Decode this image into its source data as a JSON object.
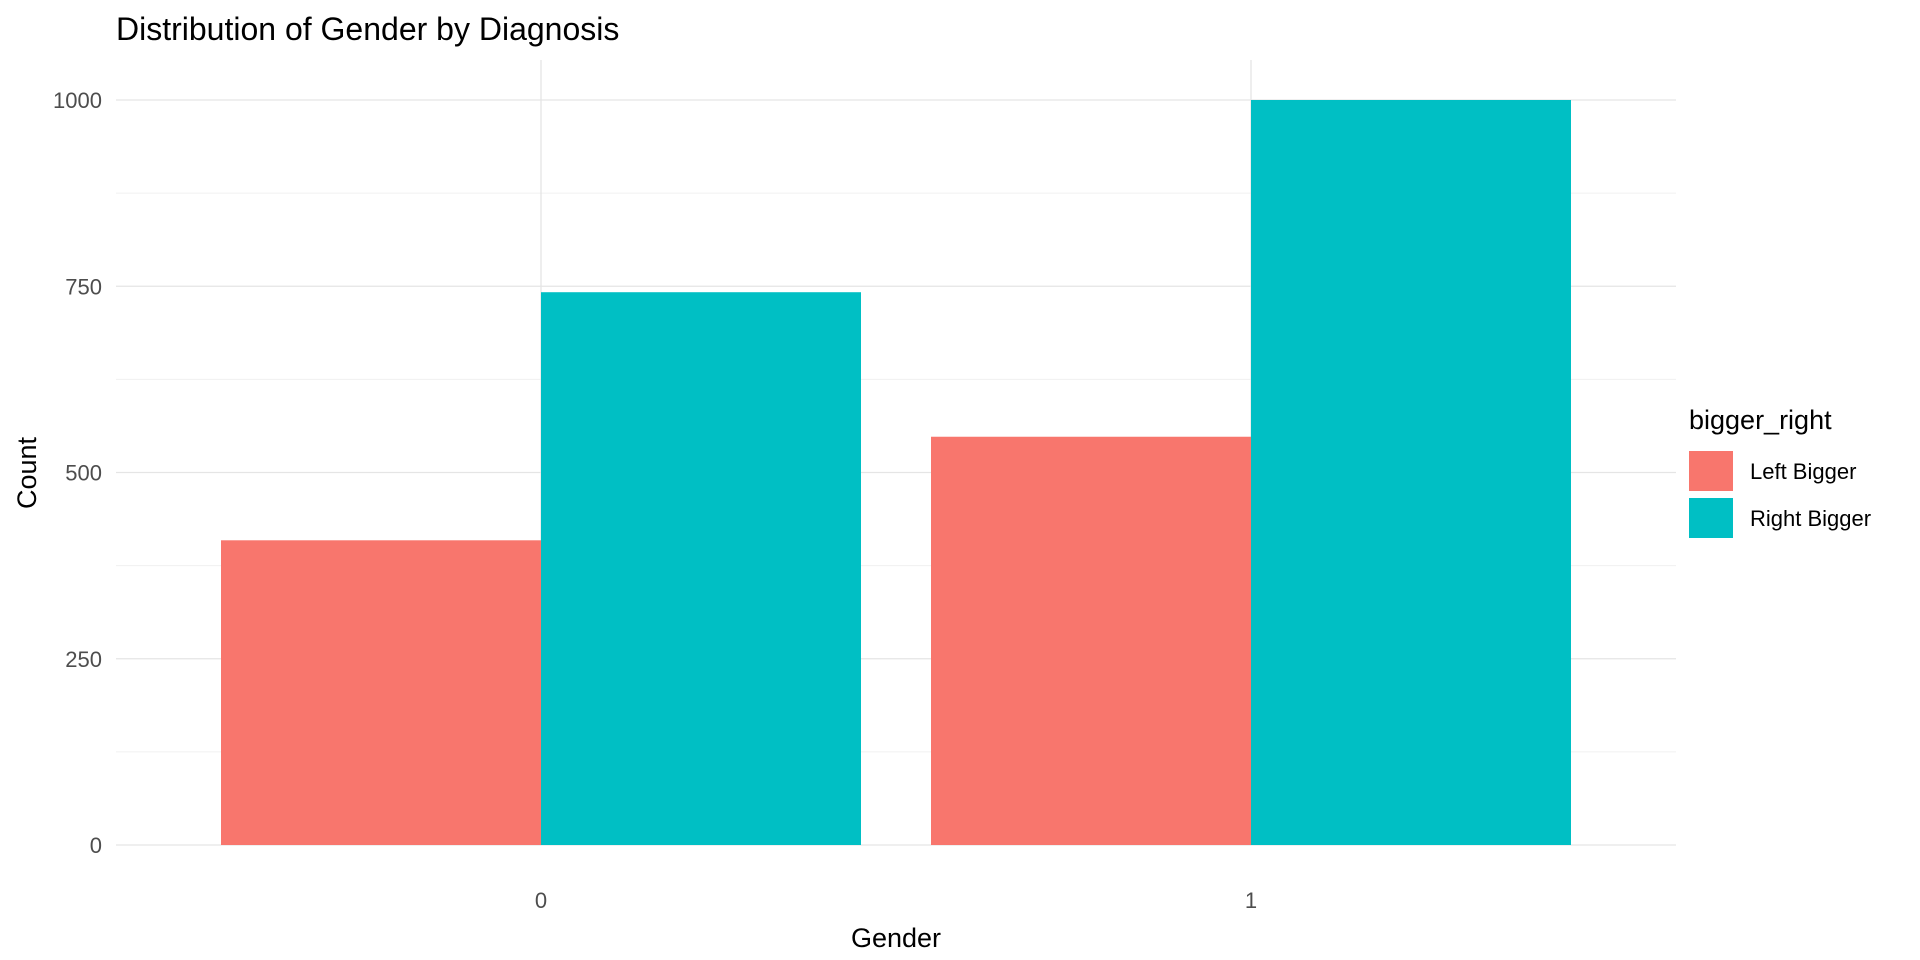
{
  "chart_data": {
    "type": "bar",
    "title": "Distribution of Gender by Diagnosis",
    "xlabel": "Gender",
    "ylabel": "Count",
    "categories": [
      "0",
      "1"
    ],
    "series": [
      {
        "name": "Left Bigger",
        "values": [
          409,
          548
        ],
        "color": "#F8766D"
      },
      {
        "name": "Right Bigger",
        "values": [
          742,
          1000
        ],
        "color": "#00BFC4"
      }
    ],
    "yticks": [
      0,
      250,
      500,
      750,
      1000
    ],
    "ylim": [
      0,
      1050
    ],
    "grid": true,
    "legend": {
      "title": "bigger_right",
      "position": "right"
    }
  }
}
